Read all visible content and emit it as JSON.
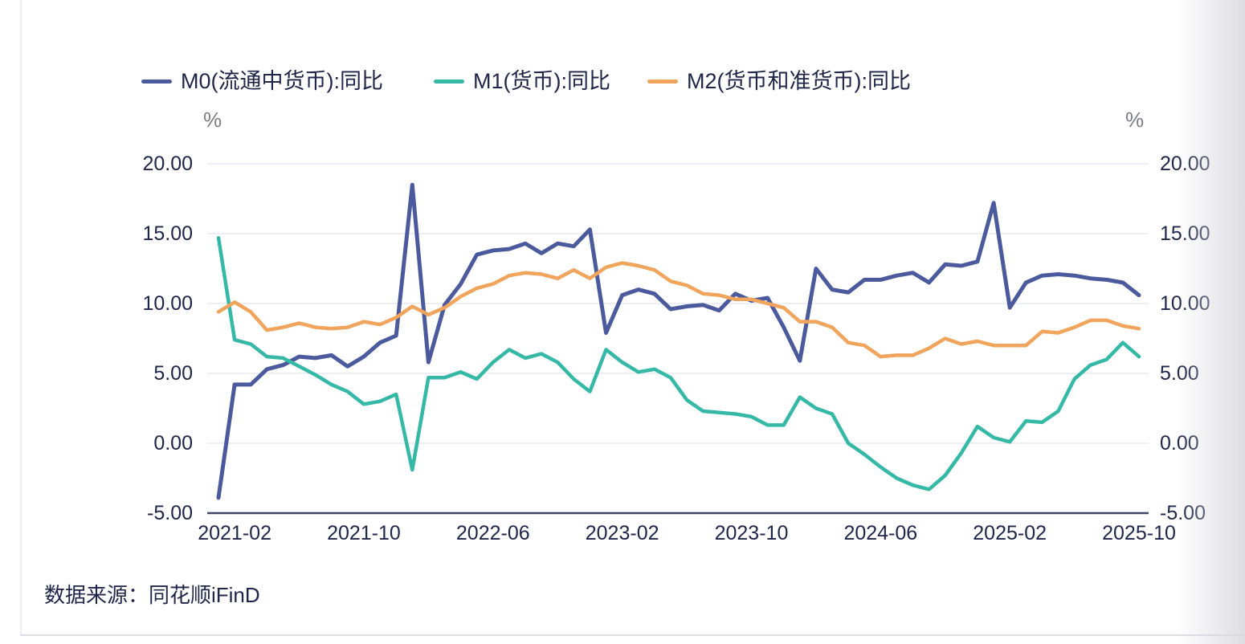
{
  "legend": {
    "items": [
      {
        "label": "M0(流通中货币):同比",
        "color": "#4A5A9C"
      },
      {
        "label": "M1(货币):同比",
        "color": "#35B9A6"
      },
      {
        "label": "M2(货币和准货币):同比",
        "color": "#F0A45C"
      }
    ]
  },
  "axes": {
    "unit_left": "%",
    "unit_right": "%",
    "y_tick_labels": [
      "20.00",
      "15.00",
      "10.00",
      "5.00",
      "0.00",
      "-5.00"
    ],
    "x_tick_labels": [
      "2021-02",
      "2021-10",
      "2022-06",
      "2023-02",
      "2023-10",
      "2024-06",
      "2025-02",
      "2025-10"
    ]
  },
  "source": "数据来源：同花顺iFinD",
  "colors": {
    "gridline": "#E7EAF2",
    "axis_line": "#3D4566",
    "tick_text": "#20264A",
    "unit_text": "#7C7C86"
  },
  "chart_data": {
    "type": "line",
    "title": "",
    "xlabel": "",
    "ylabel": "%",
    "ylim": [
      -5,
      20
    ],
    "grid": true,
    "legend_position": "top",
    "y_ticks": [
      20,
      15,
      10,
      5,
      0,
      -5
    ],
    "x": [
      "2021-01",
      "2021-02",
      "2021-03",
      "2021-04",
      "2021-05",
      "2021-06",
      "2021-07",
      "2021-08",
      "2021-09",
      "2021-10",
      "2021-11",
      "2021-12",
      "2022-01",
      "2022-02",
      "2022-03",
      "2022-04",
      "2022-05",
      "2022-06",
      "2022-07",
      "2022-08",
      "2022-09",
      "2022-10",
      "2022-11",
      "2022-12",
      "2023-01",
      "2023-02",
      "2023-03",
      "2023-04",
      "2023-05",
      "2023-06",
      "2023-07",
      "2023-08",
      "2023-09",
      "2023-10",
      "2023-11",
      "2023-12",
      "2024-01",
      "2024-02",
      "2024-03",
      "2024-04",
      "2024-05",
      "2024-06",
      "2024-07",
      "2024-08",
      "2024-09",
      "2024-10",
      "2024-11",
      "2024-12",
      "2025-01",
      "2025-02",
      "2025-03",
      "2025-04",
      "2025-05",
      "2025-06",
      "2025-07",
      "2025-08",
      "2025-09",
      "2025-10"
    ],
    "x_tick_indices": [
      1,
      9,
      17,
      25,
      33,
      41,
      49,
      57
    ],
    "series": [
      {
        "name": "M0(流通中货币):同比",
        "color": "#4A5A9C",
        "line_width": 5,
        "values": [
          -3.9,
          4.2,
          4.2,
          5.3,
          5.6,
          6.2,
          6.1,
          6.3,
          5.5,
          6.2,
          7.2,
          7.7,
          18.5,
          5.8,
          9.9,
          11.4,
          13.5,
          13.8,
          13.9,
          14.3,
          13.6,
          14.3,
          14.1,
          15.3,
          7.9,
          10.6,
          11.0,
          10.7,
          9.6,
          9.8,
          9.9,
          9.5,
          10.7,
          10.2,
          10.4,
          8.3,
          5.9,
          12.5,
          11.0,
          10.8,
          11.7,
          11.7,
          12.0,
          12.2,
          11.5,
          12.8,
          12.7,
          13.0,
          17.2,
          9.7,
          11.5,
          12.0,
          12.1,
          12.0,
          11.8,
          11.7,
          11.5,
          10.6
        ]
      },
      {
        "name": "M1(货币):同比",
        "color": "#35B9A6",
        "line_width": 4.5,
        "values": [
          14.7,
          7.4,
          7.1,
          6.2,
          6.1,
          5.5,
          4.9,
          4.2,
          3.7,
          2.8,
          3.0,
          3.5,
          -1.9,
          4.7,
          4.7,
          5.1,
          4.6,
          5.8,
          6.7,
          6.1,
          6.4,
          5.8,
          4.6,
          3.7,
          6.7,
          5.8,
          5.1,
          5.3,
          4.7,
          3.1,
          2.3,
          2.2,
          2.1,
          1.9,
          1.3,
          1.3,
          3.3,
          2.5,
          2.1,
          0.0,
          -0.8,
          -1.7,
          -2.5,
          -3.0,
          -3.3,
          -2.3,
          -0.7,
          1.2,
          0.4,
          0.1,
          1.6,
          1.5,
          2.3,
          4.6,
          5.6,
          6.0,
          7.2,
          6.2
        ]
      },
      {
        "name": "M2(货币和准货币):同比",
        "color": "#F0A45C",
        "line_width": 4.5,
        "values": [
          9.4,
          10.1,
          9.4,
          8.1,
          8.3,
          8.6,
          8.3,
          8.2,
          8.3,
          8.7,
          8.5,
          9.0,
          9.8,
          9.2,
          9.7,
          10.5,
          11.1,
          11.4,
          12.0,
          12.2,
          12.1,
          11.8,
          12.4,
          11.8,
          12.6,
          12.9,
          12.7,
          12.4,
          11.6,
          11.3,
          10.7,
          10.6,
          10.3,
          10.3,
          10.0,
          9.7,
          8.7,
          8.7,
          8.3,
          7.2,
          7.0,
          6.2,
          6.3,
          6.3,
          6.8,
          7.5,
          7.1,
          7.3,
          7.0,
          7.0,
          7.0,
          8.0,
          7.9,
          8.3,
          8.8,
          8.8,
          8.4,
          8.2
        ]
      }
    ]
  }
}
